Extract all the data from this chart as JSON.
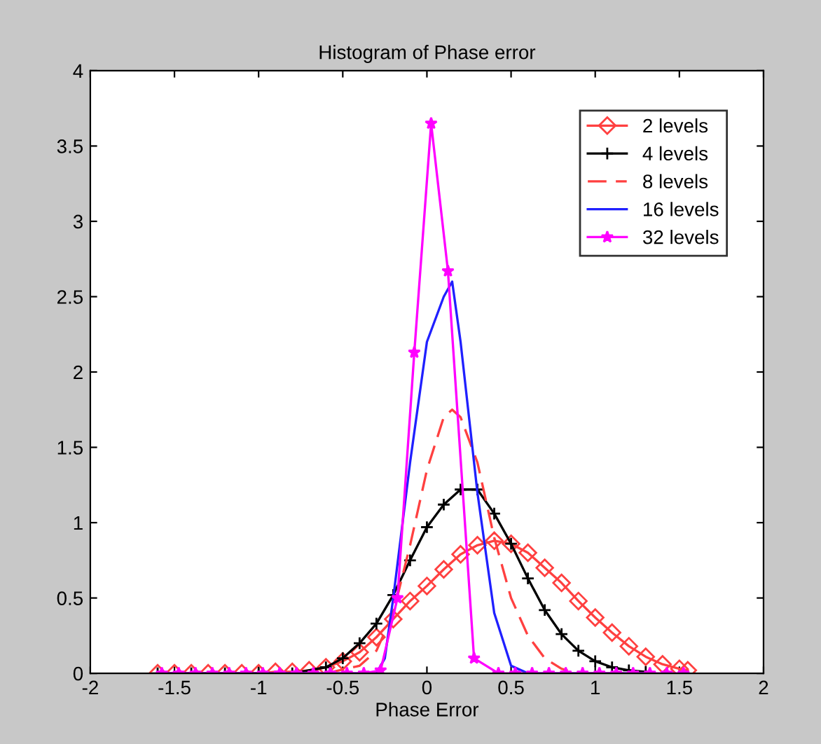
{
  "chart_data": {
    "type": "line",
    "title": "Histogram of Phase error",
    "xlabel": "Phase Error",
    "xlim": [
      -2,
      2
    ],
    "ylim": [
      0,
      4
    ],
    "xticks": [
      -2,
      -1.5,
      -1,
      -0.5,
      0,
      0.5,
      1,
      1.5,
      2
    ],
    "yticks": [
      0,
      0.5,
      1,
      1.5,
      2,
      2.5,
      3,
      3.5,
      4
    ],
    "grid": false,
    "legend": "top right",
    "series": [
      {
        "name": "2 levels",
        "color": "#ff4040",
        "marker": "diamond",
        "line_style": "solid",
        "x": [
          -1.6,
          -1.5,
          -1.4,
          -1.3,
          -1.2,
          -1.1,
          -1.0,
          -0.9,
          -0.8,
          -0.7,
          -0.6,
          -0.5,
          -0.4,
          -0.3,
          -0.2,
          -0.1,
          0,
          0.1,
          0.2,
          0.3,
          0.4,
          0.5,
          0.6,
          0.7,
          0.8,
          0.9,
          1.0,
          1.1,
          1.2,
          1.3,
          1.4,
          1.5,
          1.55
        ],
        "values": [
          0,
          0,
          0,
          0,
          0,
          0,
          0,
          0.01,
          0.01,
          0.02,
          0.04,
          0.08,
          0.14,
          0.24,
          0.36,
          0.48,
          0.58,
          0.69,
          0.79,
          0.85,
          0.88,
          0.86,
          0.8,
          0.7,
          0.6,
          0.48,
          0.37,
          0.27,
          0.18,
          0.11,
          0.06,
          0.03,
          0.02
        ]
      },
      {
        "name": "4 levels",
        "color": "#000000",
        "marker": "cross",
        "line_style": "solid",
        "x": [
          -1.6,
          -1.4,
          -1.2,
          -1.0,
          -0.8,
          -0.6,
          -0.5,
          -0.4,
          -0.3,
          -0.2,
          -0.1,
          0,
          0.1,
          0.2,
          0.3,
          0.4,
          0.5,
          0.6,
          0.7,
          0.8,
          0.9,
          1.0,
          1.1,
          1.2,
          1.3
        ],
        "values": [
          0,
          0,
          0,
          0,
          0,
          0.04,
          0.1,
          0.2,
          0.33,
          0.52,
          0.75,
          0.97,
          1.12,
          1.22,
          1.22,
          1.06,
          0.86,
          0.63,
          0.42,
          0.26,
          0.15,
          0.08,
          0.04,
          0.02,
          0.01
        ]
      },
      {
        "name": "8 levels",
        "color": "#ff4040",
        "marker": "none",
        "line_style": "dashed",
        "x": [
          -1.6,
          -0.6,
          -0.4,
          -0.3,
          -0.2,
          -0.1,
          0,
          0.1,
          0.15,
          0.2,
          0.3,
          0.4,
          0.5,
          0.6,
          0.7,
          0.8,
          0.9,
          1.3
        ],
        "values": [
          0,
          0,
          0.05,
          0.15,
          0.4,
          0.85,
          1.35,
          1.7,
          1.75,
          1.7,
          1.4,
          0.9,
          0.5,
          0.25,
          0.1,
          0.03,
          0,
          0
        ]
      },
      {
        "name": "16 levels",
        "color": "#2020ff",
        "marker": "none",
        "line_style": "solid",
        "x": [
          -1.6,
          -0.3,
          -0.25,
          -0.2,
          -0.1,
          0,
          0.1,
          0.15,
          0.2,
          0.3,
          0.4,
          0.5,
          0.6,
          1.3
        ],
        "values": [
          0,
          0,
          0.1,
          0.5,
          1.4,
          2.2,
          2.5,
          2.6,
          2.2,
          1.2,
          0.4,
          0.05,
          0,
          0
        ]
      },
      {
        "name": "32 levels",
        "color": "#ff00ff",
        "marker": "star",
        "line_style": "solid",
        "x": [
          -1.575,
          -1.475,
          -1.375,
          -1.275,
          -1.175,
          -1.075,
          -0.975,
          -0.875,
          -0.775,
          -0.675,
          -0.575,
          -0.475,
          -0.375,
          -0.275,
          -0.175,
          -0.075,
          0.025,
          0.125,
          0.28,
          0.425,
          0.525,
          0.625,
          0.725,
          0.825,
          0.925,
          1.025,
          1.125,
          1.225,
          1.325,
          1.425,
          1.525
        ],
        "values": [
          0,
          0,
          0,
          0,
          0,
          0,
          0,
          0,
          0,
          0,
          0,
          0,
          0,
          0.02,
          0.5,
          2.13,
          3.65,
          2.67,
          0.1,
          0,
          0,
          0,
          0,
          0,
          0,
          0,
          0,
          0,
          0,
          0,
          0
        ]
      }
    ]
  }
}
